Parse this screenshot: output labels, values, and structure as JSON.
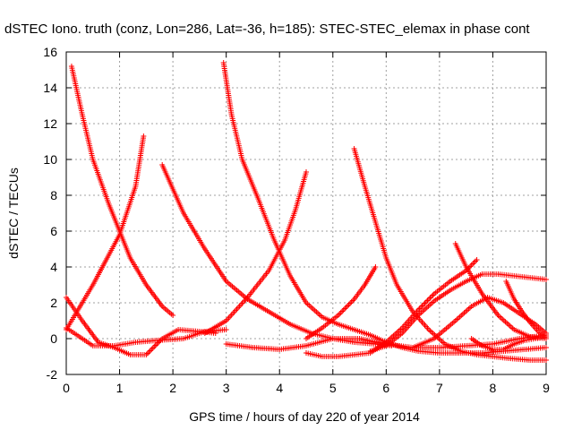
{
  "chart_data": {
    "type": "scatter",
    "title": "dSTEC Iono. truth (conz, Lon=286, Lat=-36, h=185): STEC-STEC_elemax in phase cont",
    "xlabel": "GPS time / hours of day 220 of year 2014",
    "ylabel": "dSTEC  / TECUs",
    "xlim": [
      0,
      9
    ],
    "ylim": [
      -2,
      16
    ],
    "xticks": [
      0,
      1,
      2,
      3,
      4,
      5,
      6,
      7,
      8,
      9
    ],
    "yticks": [
      -2,
      0,
      2,
      4,
      6,
      8,
      10,
      12,
      14,
      16
    ],
    "grid": true,
    "marker": "+",
    "color": "#ff0000",
    "series": [
      {
        "x": [
          0.0,
          0.5,
          1.0,
          1.3,
          1.45
        ],
        "y": [
          0.5,
          3.0,
          5.8,
          8.5,
          11.3
        ]
      },
      {
        "x": [
          0.1,
          0.3,
          0.5,
          0.8,
          1.0,
          1.2,
          1.5,
          1.8,
          2.0
        ],
        "y": [
          15.2,
          12.5,
          10.0,
          7.5,
          6.0,
          4.5,
          3.0,
          1.8,
          1.3
        ]
      },
      {
        "x": [
          0.0,
          0.3,
          0.6,
          0.9,
          1.2,
          1.5,
          1.8,
          2.1,
          2.5,
          2.8
        ],
        "y": [
          2.3,
          1.0,
          -0.2,
          -0.5,
          -0.9,
          -0.9,
          0.0,
          0.5,
          0.4,
          0.3
        ]
      },
      {
        "x": [
          0.0,
          0.5,
          0.9,
          1.3,
          1.7,
          2.2,
          2.6,
          3.0
        ],
        "y": [
          0.6,
          -0.4,
          -0.4,
          -0.2,
          -0.1,
          0.0,
          0.4,
          0.5
        ]
      },
      {
        "x": [
          1.8,
          2.2,
          2.6,
          3.0,
          3.4,
          3.8,
          4.2,
          4.6,
          5.0,
          5.4,
          5.8,
          6.1
        ],
        "y": [
          9.7,
          7.0,
          5.0,
          3.2,
          2.2,
          1.5,
          0.8,
          0.3,
          0.0,
          -0.2,
          -0.3,
          -0.4
        ]
      },
      {
        "x": [
          2.6,
          3.0,
          3.4,
          3.8,
          4.1,
          4.3,
          4.5
        ],
        "y": [
          0.3,
          1.0,
          2.3,
          3.8,
          5.5,
          7.2,
          9.3
        ]
      },
      {
        "x": [
          2.95,
          3.1,
          3.3,
          3.6,
          3.9,
          4.2,
          4.5,
          4.8,
          5.1,
          5.4,
          5.7,
          6.0,
          6.3,
          6.6,
          7.0,
          7.4,
          7.8,
          8.2,
          8.6,
          9.0
        ],
        "y": [
          15.4,
          12.5,
          10.0,
          7.8,
          5.5,
          3.5,
          2.0,
          1.2,
          0.8,
          0.5,
          0.2,
          -0.2,
          -0.5,
          -0.7,
          -0.8,
          -0.8,
          -0.8,
          -0.7,
          -0.6,
          -0.5
        ]
      },
      {
        "x": [
          3.0,
          3.5,
          4.0,
          4.5,
          5.0,
          5.5,
          6.0,
          6.5,
          7.0,
          7.5,
          8.0,
          8.5,
          9.0
        ],
        "y": [
          -0.3,
          -0.5,
          -0.6,
          -0.4,
          0.0,
          0.0,
          -0.3,
          -0.5,
          -0.5,
          -0.4,
          -0.3,
          0.0,
          0.2
        ]
      },
      {
        "x": [
          4.5,
          4.8,
          5.1,
          5.4,
          5.6,
          5.8
        ],
        "y": [
          0.0,
          0.6,
          1.3,
          2.2,
          3.0,
          4.0
        ]
      },
      {
        "x": [
          4.5,
          4.8,
          5.1,
          5.4,
          5.7,
          6.0,
          6.3,
          6.6,
          6.9,
          7.2,
          7.5,
          7.7
        ],
        "y": [
          -0.8,
          -1.0,
          -1.0,
          -0.9,
          -0.8,
          -0.2,
          0.6,
          1.6,
          2.5,
          3.2,
          3.8,
          4.4
        ]
      },
      {
        "x": [
          5.4,
          5.6,
          5.8,
          6.0,
          6.2,
          6.5,
          6.8,
          7.1,
          7.4,
          7.7,
          8.0,
          8.3,
          8.7,
          9.0
        ],
        "y": [
          10.6,
          8.5,
          6.5,
          4.5,
          3.0,
          1.5,
          0.5,
          -0.3,
          -0.7,
          -0.9,
          -1.0,
          -1.1,
          -1.2,
          -1.2
        ]
      },
      {
        "x": [
          5.7,
          6.0,
          6.3,
          6.6,
          6.9,
          7.2,
          7.5,
          7.8,
          8.1,
          8.4,
          8.7,
          9.0
        ],
        "y": [
          -0.7,
          -0.4,
          0.3,
          1.3,
          2.1,
          2.7,
          3.2,
          3.6,
          3.6,
          3.5,
          3.4,
          3.3
        ]
      },
      {
        "x": [
          7.3,
          7.5,
          7.8,
          8.1,
          8.4,
          8.7,
          9.0
        ],
        "y": [
          5.3,
          4.0,
          2.5,
          1.3,
          0.5,
          0.1,
          0.0
        ]
      },
      {
        "x": [
          6.5,
          6.9,
          7.3,
          7.6,
          7.9,
          8.2,
          8.5,
          8.8,
          9.0
        ],
        "y": [
          -0.5,
          0.0,
          1.0,
          1.8,
          2.3,
          2.0,
          1.4,
          0.8,
          0.3
        ]
      },
      {
        "x": [
          8.25,
          8.4,
          8.55,
          8.7,
          8.85,
          9.0
        ],
        "y": [
          3.2,
          2.2,
          1.5,
          0.9,
          0.4,
          0.0
        ]
      },
      {
        "x": [
          7.6,
          7.8,
          8.0,
          8.2,
          8.4,
          8.6,
          8.8,
          9.0
        ],
        "y": [
          0.0,
          -0.4,
          -0.6,
          -0.6,
          -0.3,
          -0.1,
          0.0,
          0.1
        ]
      }
    ]
  }
}
